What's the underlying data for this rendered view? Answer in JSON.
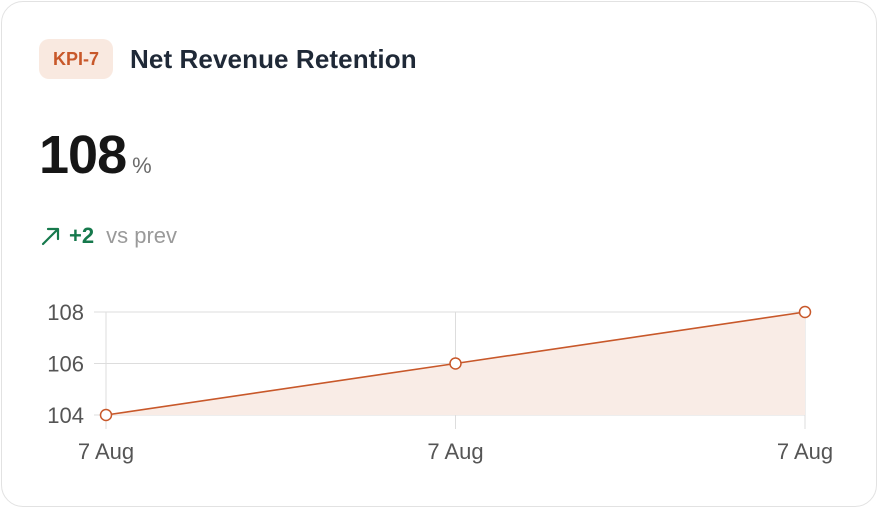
{
  "kpi": {
    "badge": "KPI-7",
    "title": "Net Revenue Retention",
    "value": "108",
    "unit": "%",
    "delta": "+2",
    "delta_label": "vs prev",
    "delta_direction": "up",
    "delta_icon": "arrow-up-right-icon"
  },
  "colors": {
    "accent": "#c8582a",
    "accent_fill": "#f9ece6",
    "badge_bg": "#f9e9e0",
    "positive": "#16794c",
    "grid": "#dddddd"
  },
  "chart_data": {
    "type": "area",
    "x": [
      "7 Aug",
      "7 Aug",
      "7 Aug"
    ],
    "values": [
      104,
      106,
      108
    ],
    "yticks": [
      104,
      106,
      108
    ],
    "ylim": [
      104,
      108
    ],
    "grid": true,
    "markers": "hollow-circle"
  }
}
